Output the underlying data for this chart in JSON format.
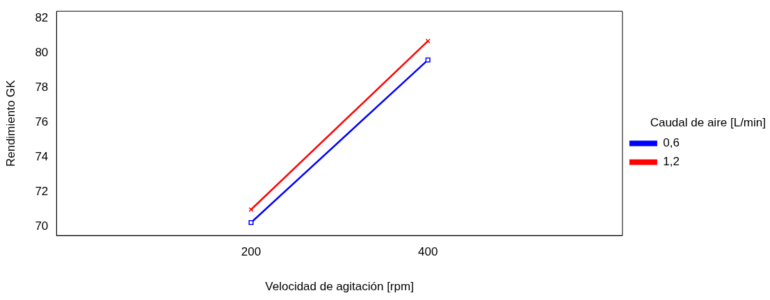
{
  "chart_data": {
    "type": "line",
    "xlabel": "Velocidad de agitación [rpm]",
    "ylabel": "Rendimiento GK",
    "legend_title": "Caudal de aire [L/min]",
    "x": [
      200,
      400
    ],
    "series": [
      {
        "name": "0,6",
        "color": "#0000ff",
        "values": [
          70.22,
          79.6
        ],
        "marker": "square"
      },
      {
        "name": "1,2",
        "color": "#ff0000",
        "values": [
          70.97,
          80.69
        ],
        "marker": "cross"
      }
    ],
    "xlim": [
      -20,
      620
    ],
    "xticks": [
      200,
      400
    ],
    "ylim": [
      69.47,
      82.41
    ],
    "yticks": [
      70,
      72,
      74,
      76,
      78,
      80,
      82
    ],
    "grid": false,
    "legend": "right",
    "line_style": "solid"
  }
}
